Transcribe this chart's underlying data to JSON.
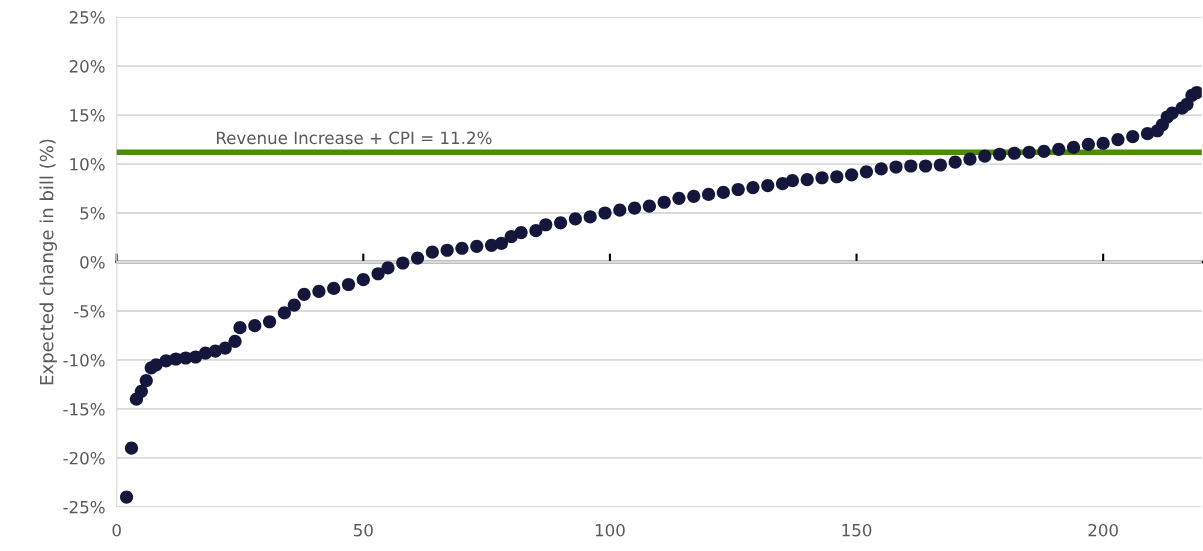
{
  "chart_data": {
    "type": "scatter",
    "ylabel": "Expected change in bill (%)",
    "series": [
      {
        "color": "#14163c",
        "x": [
          2,
          3,
          4,
          5,
          6,
          7,
          8,
          10,
          12,
          14,
          16,
          18,
          20,
          22,
          24,
          25,
          28,
          31,
          34,
          36,
          38,
          41,
          44,
          47,
          50,
          53,
          55,
          58,
          61,
          64,
          67,
          70,
          73,
          76,
          78,
          80,
          82,
          85,
          87,
          90,
          93,
          96,
          99,
          102,
          105,
          108,
          111,
          114,
          117,
          120,
          123,
          126,
          129,
          132,
          135,
          137,
          140,
          143,
          146,
          149,
          152,
          155,
          158,
          161,
          164,
          167,
          170,
          173,
          176,
          179,
          182,
          185,
          188,
          191,
          194,
          197,
          200,
          203,
          206,
          209,
          211,
          212,
          213,
          214,
          216,
          217,
          218,
          219
        ],
        "values": [
          -24,
          -19,
          -14,
          -13.2,
          -12.1,
          -10.8,
          -10.5,
          -10.1,
          -9.9,
          -9.8,
          -9.7,
          -9.3,
          -9.1,
          -8.8,
          -8.1,
          -6.7,
          -6.5,
          -6.1,
          -5.2,
          -4.4,
          -3.3,
          -3.0,
          -2.7,
          -2.3,
          -1.8,
          -1.2,
          -0.6,
          -0.1,
          0.4,
          1.0,
          1.2,
          1.4,
          1.6,
          1.7,
          1.9,
          2.6,
          3.0,
          3.2,
          3.8,
          4.0,
          4.4,
          4.6,
          5.0,
          5.3,
          5.5,
          5.7,
          6.1,
          6.5,
          6.7,
          6.9,
          7.1,
          7.4,
          7.6,
          7.8,
          8.0,
          8.3,
          8.4,
          8.6,
          8.7,
          8.9,
          9.2,
          9.5,
          9.7,
          9.8,
          9.8,
          9.9,
          10.2,
          10.5,
          10.8,
          11.0,
          11.1,
          11.2,
          11.3,
          11.5,
          11.7,
          12.0,
          12.1,
          12.5,
          12.8,
          13.1,
          13.4,
          14.0,
          14.8,
          15.2,
          15.7,
          16.1,
          17.0,
          17.3
        ]
      }
    ],
    "xlim": [
      0,
      220
    ],
    "xticks": [
      0,
      50,
      100,
      150,
      200
    ],
    "ylim": [
      -25,
      25
    ],
    "yticks": [
      {
        "value": -25,
        "label": "-25%"
      },
      {
        "value": -20,
        "label": "-20%"
      },
      {
        "value": -15,
        "label": "-15%"
      },
      {
        "value": -10,
        "label": "-10%"
      },
      {
        "value": -5,
        "label": "-5%"
      },
      {
        "value": 0,
        "label": "0%"
      },
      {
        "value": 5,
        "label": "5%"
      },
      {
        "value": 10,
        "label": "10%"
      },
      {
        "value": 15,
        "label": "15%"
      },
      {
        "value": 20,
        "label": "20%"
      },
      {
        "value": 25,
        "label": "25%"
      }
    ],
    "grid": "y",
    "marker": "circle",
    "ref_lines": [
      {
        "axis": "y",
        "value": 11.2,
        "label": "Revenue Increase + CPI = 11.2%",
        "color": "#4c8c0a",
        "line_style": "solid"
      }
    ]
  }
}
